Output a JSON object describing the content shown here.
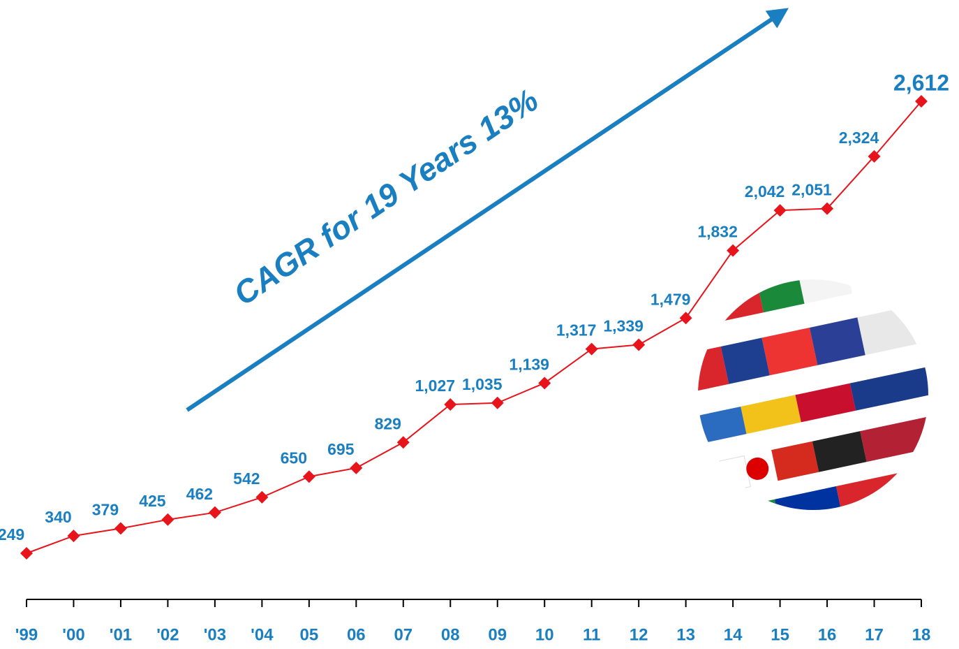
{
  "chart_data": {
    "type": "line",
    "annotation": "CAGR for 19 Years 13%",
    "categories": [
      "'99",
      "'00",
      "'01",
      "'02",
      "'03",
      "'04",
      "05",
      "06",
      "07",
      "08",
      "09",
      "10",
      "11",
      "12",
      "13",
      "14",
      "15",
      "16",
      "17",
      "18"
    ],
    "series": [
      {
        "color": "#e8141b",
        "values": [
          249,
          340,
          379,
          425,
          462,
          542,
          650,
          695,
          829,
          1027,
          1035,
          1139,
          1317,
          1339,
          1479,
          1832,
          2042,
          2051,
          2324,
          2612
        ],
        "value_labels": [
          "249",
          "340",
          "379",
          "425",
          "462",
          "542",
          "650",
          "695",
          "829",
          "1,027",
          "1,035",
          "1,139",
          "1,317",
          "1,339",
          "1,479",
          "1,832",
          "2,042",
          "2,051",
          "2,324",
          "2,612"
        ]
      }
    ],
    "label_color": "#1a7fc1"
  }
}
